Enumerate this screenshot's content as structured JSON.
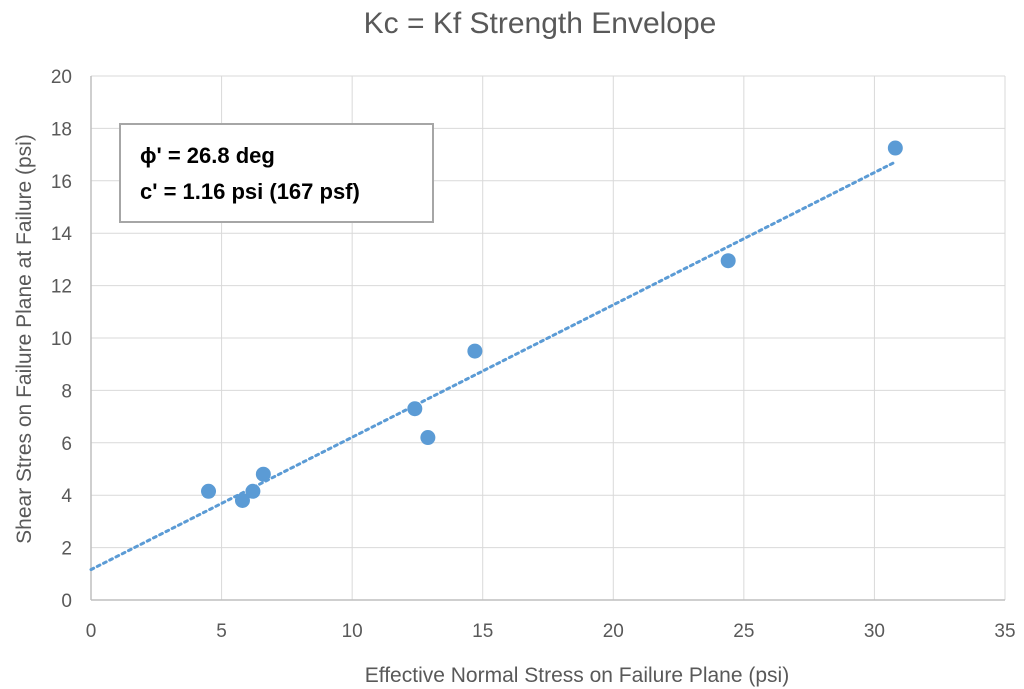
{
  "chart_data": {
    "type": "scatter",
    "title": "Kc = Kf Strength Envelope",
    "xlabel": "Effective Normal Stress on Failure Plane (psi)",
    "ylabel": "Shear Stres on Failure Plane at Failure (psi)",
    "xlim": [
      0,
      35
    ],
    "ylim": [
      0,
      20
    ],
    "x_ticks": [
      "0",
      "5",
      "10",
      "15",
      "20",
      "25",
      "30",
      "35"
    ],
    "y_ticks": [
      "0",
      "2",
      "4",
      "6",
      "8",
      "10",
      "12",
      "14",
      "16",
      "18",
      "20"
    ],
    "grid": true,
    "series": [
      {
        "x": [
          4.5,
          5.8,
          6.2,
          6.6,
          12.4,
          12.9,
          14.7,
          24.4,
          30.8
        ],
        "y": [
          4.15,
          3.8,
          4.15,
          4.8,
          7.3,
          6.2,
          9.5,
          12.95,
          17.25
        ],
        "color": "#5b9bd5"
      }
    ],
    "trendline": {
      "style": "dotted",
      "color": "#5b9bd5",
      "x": [
        0,
        30.8
      ],
      "y": [
        1.16,
        16.72
      ]
    },
    "annotation": {
      "line1": "ϕ' = 26.8 deg",
      "line2": "c' = 1.16 psi (167 psf)"
    }
  }
}
